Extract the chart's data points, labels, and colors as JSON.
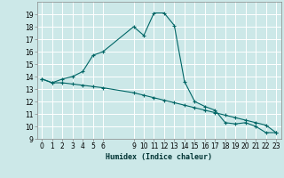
{
  "xlabel": "Humidex (Indice chaleur)",
  "bg_color": "#cce8e8",
  "grid_color": "#ffffff",
  "line_color": "#006666",
  "ylim": [
    9,
    20
  ],
  "xlim": [
    -0.5,
    23.5
  ],
  "yticks": [
    9,
    10,
    11,
    12,
    13,
    14,
    15,
    16,
    17,
    18,
    19
  ],
  "xticks": [
    0,
    1,
    2,
    3,
    4,
    5,
    6,
    9,
    10,
    11,
    12,
    13,
    14,
    15,
    16,
    17,
    18,
    19,
    20,
    21,
    22,
    23
  ],
  "line1_x": [
    0,
    1,
    2,
    3,
    4,
    5,
    6,
    9,
    10,
    11,
    12,
    13,
    14,
    15,
    16,
    17,
    18,
    19,
    20,
    21,
    22,
    23
  ],
  "line1_y": [
    13.8,
    13.5,
    13.8,
    14.0,
    14.4,
    15.7,
    16.0,
    18.0,
    17.3,
    19.1,
    19.1,
    18.1,
    13.6,
    12.0,
    11.6,
    11.3,
    10.3,
    10.2,
    10.3,
    10.0,
    9.5,
    9.5
  ],
  "line2_x": [
    0,
    1,
    2,
    3,
    4,
    5,
    6,
    9,
    10,
    11,
    12,
    13,
    14,
    15,
    16,
    17,
    18,
    19,
    20,
    21,
    22,
    23
  ],
  "line2_y": [
    13.8,
    13.5,
    13.5,
    13.4,
    13.3,
    13.2,
    13.1,
    12.7,
    12.5,
    12.3,
    12.1,
    11.9,
    11.7,
    11.5,
    11.3,
    11.1,
    10.9,
    10.7,
    10.5,
    10.3,
    10.1,
    9.5
  ],
  "tick_fontsize": 5.5,
  "xlabel_fontsize": 6.0
}
